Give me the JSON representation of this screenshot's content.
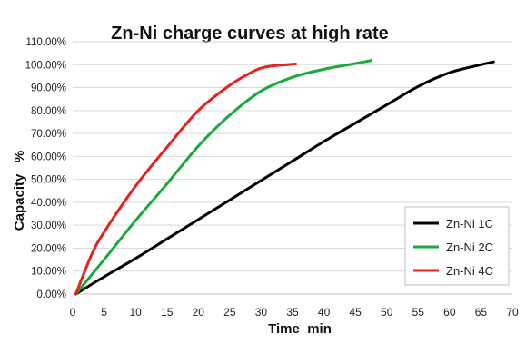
{
  "chart_data": {
    "type": "line",
    "title": "Zn-Ni charge curves at high rate",
    "xlabel": "Time  min",
    "ylabel": "Capacity   %",
    "xlim": [
      0,
      70
    ],
    "ylim": [
      0,
      1.1
    ],
    "x_ticks": [
      "0",
      "5",
      "10",
      "15",
      "20",
      "25",
      "30",
      "35",
      "40",
      "45",
      "50",
      "55",
      "60",
      "65",
      "70"
    ],
    "y_ticks": [
      "0.00%",
      "10.00%",
      "20.00%",
      "30.00%",
      "40.00%",
      "50.00%",
      "60.00%",
      "70.00%",
      "80.00%",
      "90.00%",
      "100.00%",
      "110.00%"
    ],
    "grid": "horizontal",
    "legend_position": "bottom-right",
    "series": [
      {
        "name": "Zn-Ni 1C",
        "color": "#000000",
        "points": [
          [
            0.5,
            0.0
          ],
          [
            5,
            0.075
          ],
          [
            10,
            0.155
          ],
          [
            15,
            0.24
          ],
          [
            20,
            0.325
          ],
          [
            25,
            0.41
          ],
          [
            30,
            0.495
          ],
          [
            35,
            0.58
          ],
          [
            40,
            0.665
          ],
          [
            45,
            0.745
          ],
          [
            50,
            0.825
          ],
          [
            55,
            0.905
          ],
          [
            60,
            0.965
          ],
          [
            65,
            1.0
          ],
          [
            67,
            1.012
          ]
        ]
      },
      {
        "name": "Zn-Ni 2C",
        "color": "#1aaa3a",
        "points": [
          [
            0.5,
            0.0
          ],
          [
            5,
            0.15
          ],
          [
            10,
            0.32
          ],
          [
            15,
            0.48
          ],
          [
            20,
            0.645
          ],
          [
            25,
            0.78
          ],
          [
            30,
            0.885
          ],
          [
            35,
            0.945
          ],
          [
            40,
            0.98
          ],
          [
            45,
            1.005
          ],
          [
            47.5,
            1.018
          ]
        ]
      },
      {
        "name": "Zn-Ni 4C",
        "color": "#e8201e",
        "points": [
          [
            0.5,
            0.0
          ],
          [
            3,
            0.17
          ],
          [
            5,
            0.27
          ],
          [
            10,
            0.47
          ],
          [
            15,
            0.64
          ],
          [
            20,
            0.8
          ],
          [
            25,
            0.91
          ],
          [
            28,
            0.96
          ],
          [
            30,
            0.985
          ],
          [
            32,
            0.995
          ],
          [
            35.5,
            1.003
          ]
        ]
      }
    ]
  }
}
